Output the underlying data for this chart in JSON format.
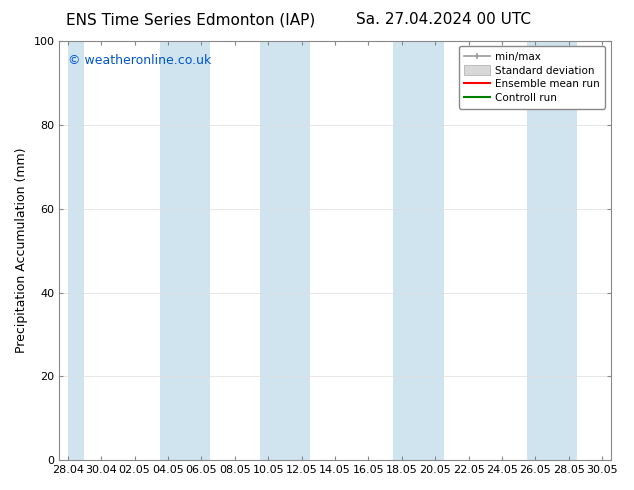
{
  "title_left": "ENS Time Series Edmonton (IAP)",
  "title_right": "Sa. 27.04.2024 00 UTC",
  "ylabel": "Precipitation Accumulation (mm)",
  "watermark": "© weatheronline.co.uk",
  "watermark_color": "#0055cc",
  "ylim": [
    0,
    100
  ],
  "yticks": [
    0,
    20,
    40,
    60,
    80,
    100
  ],
  "x_tick_labels": [
    "28.04",
    "30.04",
    "02.05",
    "04.05",
    "06.05",
    "08.05",
    "10.05",
    "12.05",
    "14.05",
    "16.05",
    "18.05",
    "20.05",
    "22.05",
    "24.05",
    "26.05",
    "28.05",
    "30.05"
  ],
  "background_color": "#ffffff",
  "plot_bg_color": "#ffffff",
  "band_color_minmax": "#d0e4f0",
  "band_color_std": "#e4eff7",
  "legend_labels": [
    "min/max",
    "Standard deviation",
    "Ensemble mean run",
    "Controll run"
  ],
  "legend_colors": [
    "#999999",
    "#cccccc",
    "#ff0000",
    "#008000"
  ],
  "title_fontsize": 11,
  "axis_label_fontsize": 9,
  "tick_fontsize": 8,
  "watermark_fontsize": 9,
  "shaded_indices": [
    0,
    3,
    6,
    10,
    14
  ]
}
